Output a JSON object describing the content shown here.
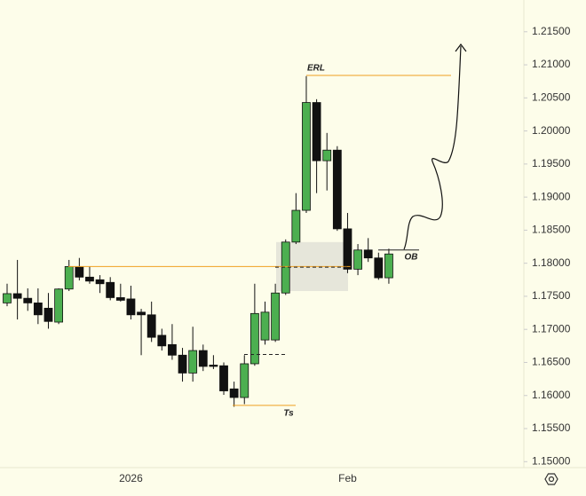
{
  "chart_data": {
    "type": "candlestick",
    "categories": [
      null,
      null,
      null,
      null,
      null,
      null,
      null,
      null,
      null,
      null,
      null,
      null,
      "2026",
      null,
      null,
      null,
      null,
      null,
      null,
      null,
      null,
      null,
      null,
      null,
      null,
      null,
      null,
      null,
      null,
      null,
      null,
      null,
      null,
      "Feb",
      null,
      null,
      null,
      null
    ],
    "open": [
      1.174,
      1.1754,
      1.1747,
      1.174,
      1.1732,
      1.1711,
      1.1761,
      1.1795,
      1.1779,
      1.1775,
      1.1771,
      1.1748,
      1.1746,
      1.1726,
      1.1722,
      1.1691,
      1.1677,
      1.1661,
      1.1634,
      1.1668,
      1.1646,
      1.1645,
      1.161,
      1.1597,
      1.1648,
      1.1684,
      1.1684,
      1.1755,
      1.1832,
      1.188,
      1.2043,
      1.1955,
      1.1971,
      1.1852,
      1.1791,
      1.182,
      1.1808,
      1.1778
    ],
    "high": [
      1.1769,
      1.1805,
      1.1762,
      1.1762,
      1.1755,
      1.1762,
      1.1805,
      1.1808,
      1.1795,
      1.1782,
      1.1779,
      1.1769,
      1.1766,
      1.1731,
      1.1742,
      1.1701,
      1.1708,
      1.1672,
      1.1704,
      1.1677,
      1.1661,
      1.165,
      1.1621,
      1.1661,
      1.1769,
      1.1742,
      1.1769,
      1.1836,
      1.1906,
      1.2083,
      1.2048,
      1.1997,
      1.1977,
      1.1876,
      1.1829,
      1.1838,
      1.1816,
      1.1822
    ],
    "low": [
      1.1735,
      1.1715,
      1.1728,
      1.1708,
      1.1701,
      1.1708,
      1.1758,
      1.1774,
      1.1769,
      1.1755,
      1.1744,
      1.1742,
      1.1715,
      1.1661,
      1.1681,
      1.1668,
      1.1654,
      1.1621,
      1.1621,
      1.1637,
      1.164,
      1.1601,
      1.1583,
      1.1587,
      1.1645,
      1.1677,
      1.1681,
      1.1752,
      1.1829,
      1.1876,
      1.1906,
      1.191,
      1.1849,
      1.1785,
      1.1782,
      1.1802,
      1.1775,
      1.1769
    ],
    "close": [
      1.1754,
      1.1747,
      1.174,
      1.1722,
      1.1712,
      1.1761,
      1.1795,
      1.1779,
      1.1773,
      1.1769,
      1.1748,
      1.1744,
      1.1722,
      1.1722,
      1.1688,
      1.1675,
      1.1661,
      1.1634,
      1.1668,
      1.1644,
      1.1644,
      1.1607,
      1.1597,
      1.1648,
      1.1724,
      1.1726,
      1.1755,
      1.1832,
      1.188,
      1.2043,
      1.1955,
      1.1971,
      1.1852,
      1.1791,
      1.182,
      1.1808,
      1.1778,
      1.1814
    ],
    "up_color": "#4caf50",
    "down_color": "#111111",
    "ylim": [
      1.1491,
      1.2198
    ],
    "yticks": [
      {
        "value": 1.15,
        "label": "1.15000"
      },
      {
        "value": 1.155,
        "label": "1.15500"
      },
      {
        "value": 1.16,
        "label": "1.16000"
      },
      {
        "value": 1.165,
        "label": "1.16500"
      },
      {
        "value": 1.17,
        "label": "1.17000"
      },
      {
        "value": 1.175,
        "label": "1.17500"
      },
      {
        "value": 1.18,
        "label": "1.18000"
      },
      {
        "value": 1.185,
        "label": "1.18500"
      },
      {
        "value": 1.19,
        "label": "1.19000"
      },
      {
        "value": 1.195,
        "label": "1.19500"
      },
      {
        "value": 1.2,
        "label": "1.20000"
      },
      {
        "value": 1.205,
        "label": "1.20500"
      },
      {
        "value": 1.21,
        "label": "1.21000"
      },
      {
        "value": 1.215,
        "label": "1.21500"
      }
    ],
    "zone": {
      "low": 1.1758,
      "high": 1.1832,
      "color": "#e6e6da"
    },
    "levels": [
      {
        "label": "ERL",
        "value": 1.2084,
        "color": "#f0a020"
      },
      {
        "value": 1.1795,
        "color": "#f0a020"
      },
      {
        "label": "Ts",
        "value": 1.1585,
        "color": "#f0a020"
      },
      {
        "label": "OB",
        "value": 1.182,
        "color": "#222222"
      },
      {
        "value": 1.1794,
        "color": "#222222",
        "dashed": true
      },
      {
        "value": 1.1662,
        "color": "#222222",
        "dashed": true
      }
    ]
  }
}
